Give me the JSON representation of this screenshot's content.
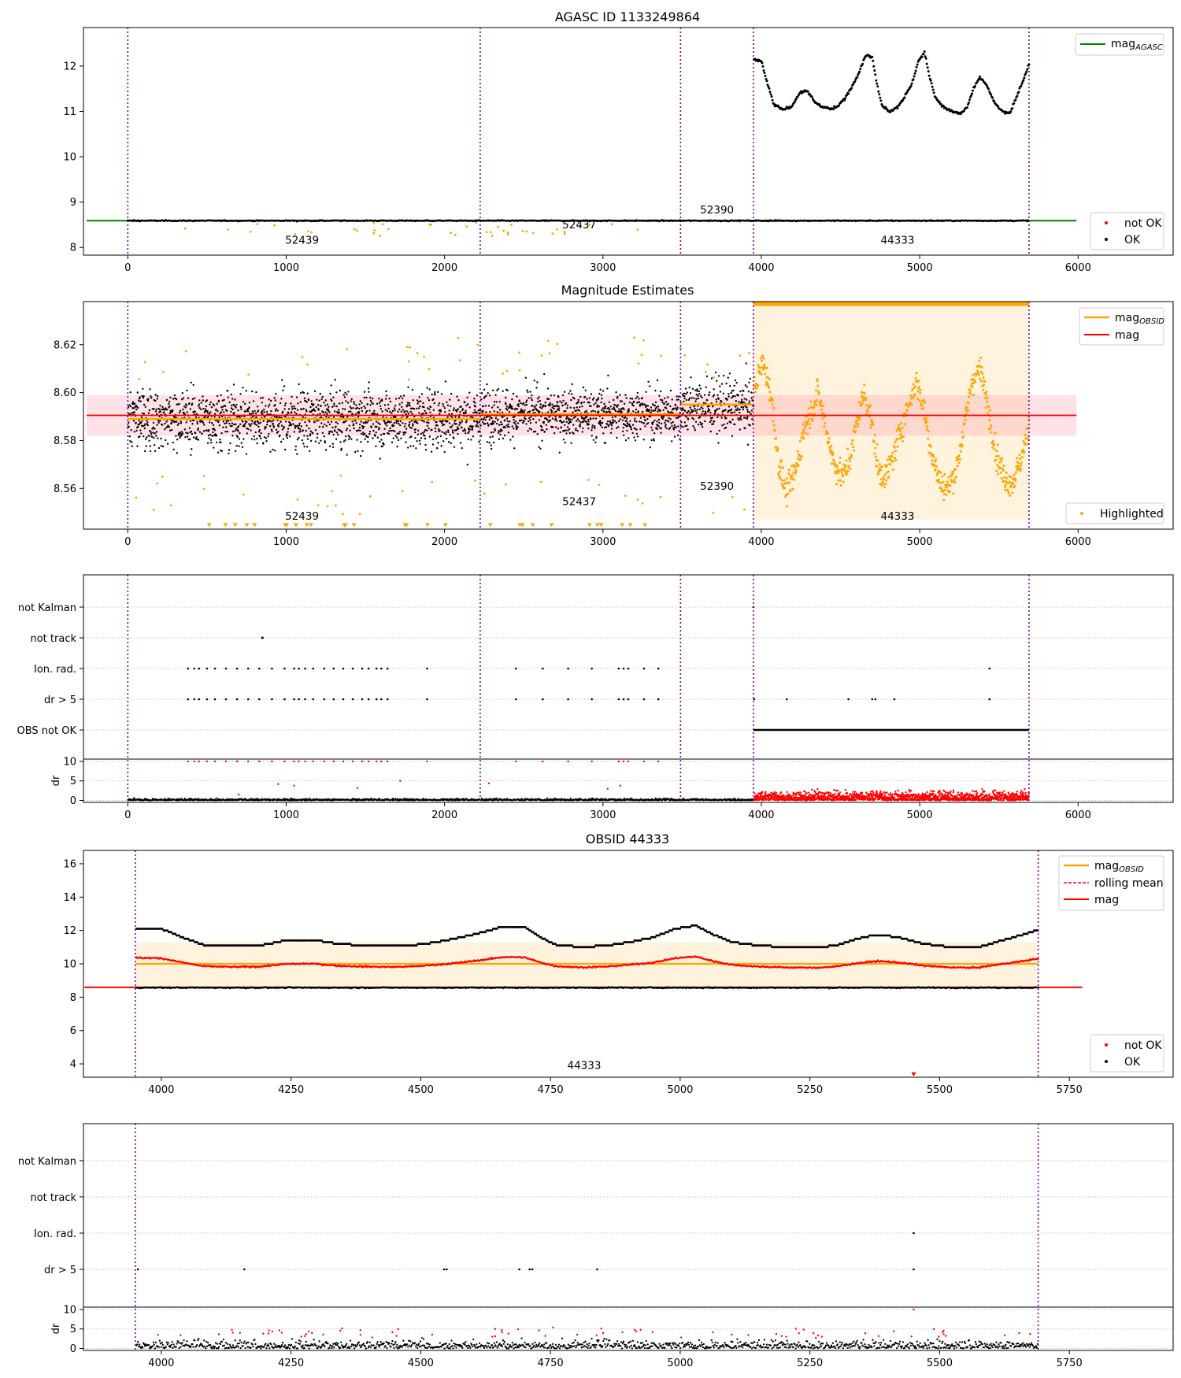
{
  "colors": {
    "ok": "#000000",
    "not_ok": "#ff0000",
    "highlight": "#ffa500",
    "agasc": "#008000",
    "mag": "#ff0000",
    "obsid_mag": "#ffa500",
    "obs_line": "#7b00a0"
  },
  "chart_data": [
    {
      "type": "scatter",
      "title": "AGASC ID 1133249864",
      "xlabel": "",
      "ylabel": "",
      "xlim": [
        -280,
        6600
      ],
      "ylim": [
        7.83,
        12.85
      ],
      "xticks": [
        0,
        1000,
        2000,
        3000,
        4000,
        5000,
        6000
      ],
      "yticks": [
        8,
        9,
        10,
        11,
        12
      ],
      "obs_boundaries": [
        0,
        2225,
        3490,
        3950,
        5690
      ],
      "obs_labels": [
        {
          "text": "52439",
          "x": 1100,
          "y": 8.08
        },
        {
          "text": "52437",
          "x": 2850,
          "y": 8.42
        },
        {
          "text": "52390",
          "x": 3720,
          "y": 8.75
        },
        {
          "text": "44333",
          "x": 4860,
          "y": 8.08
        }
      ],
      "mag_agasc": 8.59,
      "legend_top": [
        "mag_AGASC"
      ],
      "legend_bottom": [
        "not OK",
        "OK"
      ],
      "series": [
        {
          "name": "OK",
          "segments": "baseline 8.59 over 0-5690; obsid 44333 upper branch 10.9-12.4 over 3950-5690"
        },
        {
          "name": "not OK",
          "values": "sparse points 8.25-8.5"
        }
      ]
    },
    {
      "type": "scatter",
      "title": "Magnitude Estimates",
      "xlim": [
        -280,
        6600
      ],
      "ylim": [
        8.543,
        8.638
      ],
      "xticks": [
        0,
        1000,
        2000,
        3000,
        4000,
        5000,
        6000
      ],
      "yticks": [
        8.56,
        8.58,
        8.6,
        8.62
      ],
      "mag": 8.5905,
      "mag_band": [
        8.582,
        8.599
      ],
      "obsid_mags": [
        {
          "obsid": "52439",
          "x": [
            0,
            2225
          ],
          "mag": 8.589
        },
        {
          "obsid": "52437",
          "x": [
            2225,
            3490
          ],
          "mag": 8.591
        },
        {
          "obsid": "52390",
          "x": [
            3490,
            3950
          ],
          "mag": 8.595
        },
        {
          "obsid": "44333",
          "x": [
            3950,
            5690
          ],
          "mag": 8.637
        }
      ],
      "highlight_band": [
        8.547,
        8.638
      ],
      "obs_labels": [
        {
          "text": "52439",
          "x": 1100,
          "y": 8.547
        },
        {
          "text": "52437",
          "x": 2850,
          "y": 8.553
        },
        {
          "text": "52390",
          "x": 3720,
          "y": 8.5595
        },
        {
          "text": "44333",
          "x": 4860,
          "y": 8.547
        }
      ],
      "legend_top": [
        "mag_OBSID",
        "mag"
      ],
      "legend_bottom": [
        "Highlighted"
      ]
    },
    {
      "type": "scatter",
      "title": "",
      "xlim": [
        -280,
        6600
      ],
      "xticks": [
        0,
        1000,
        2000,
        3000,
        4000,
        5000,
        6000
      ],
      "flags": [
        "not Kalman",
        "not track",
        "Ion. rad.",
        "dr > 5",
        "OBS not OK"
      ],
      "dr_yticks": [
        0,
        5,
        10
      ],
      "dr_ylabel": "dr",
      "dr_ylim": [
        -0.5,
        10.6
      ]
    },
    {
      "type": "scatter",
      "title": "OBSID 44333",
      "xlim": [
        3850,
        5950
      ],
      "ylim": [
        3.2,
        16.8
      ],
      "xticks": [
        4000,
        4250,
        4500,
        4750,
        5000,
        5250,
        5500,
        5750
      ],
      "yticks": [
        4,
        6,
        8,
        10,
        12,
        14,
        16
      ],
      "obs_boundaries": [
        3950,
        5690
      ],
      "obsid_mag": 10.0,
      "mag": 8.59,
      "band": [
        8.59,
        11.3
      ],
      "obs_label": {
        "text": "44333",
        "x": 4815,
        "y": 3.7
      },
      "legend_top": [
        "mag_OBSID",
        "rolling mean",
        "mag"
      ],
      "legend_bottom": [
        "not OK",
        "OK"
      ]
    },
    {
      "type": "scatter",
      "title": "",
      "xlim": [
        3850,
        5950
      ],
      "xticks": [
        4000,
        4250,
        4500,
        4750,
        5000,
        5250,
        5500,
        5750
      ],
      "flags": [
        "not Kalman",
        "not track",
        "Ion. rad.",
        "dr > 5"
      ],
      "dr_yticks": [
        0,
        5,
        10
      ],
      "dr_ylabel": "dr",
      "dr_ylim": [
        -0.5,
        10.6
      ]
    }
  ],
  "labels": {
    "agasc_sub": "AGASC",
    "obsid_sub": "OBSID",
    "mag_prefix": "mag"
  }
}
